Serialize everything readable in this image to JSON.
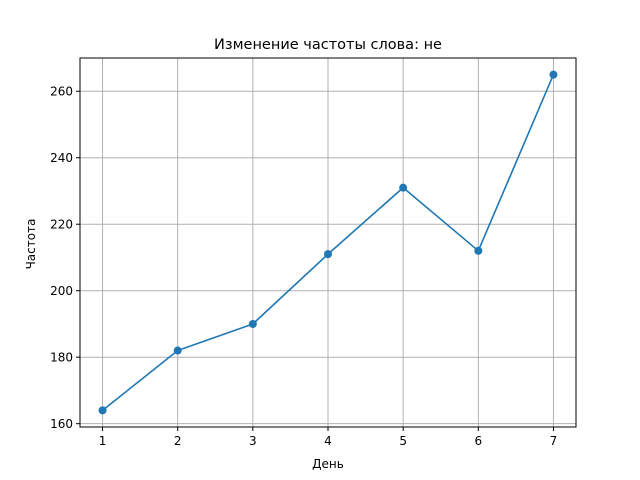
{
  "chart_data": {
    "type": "line",
    "title": "Изменение частоты слова: не",
    "xlabel": "День",
    "ylabel": "Частота",
    "x": [
      1,
      2,
      3,
      4,
      5,
      6,
      7
    ],
    "series": [
      {
        "values": [
          164,
          182,
          190,
          211,
          231,
          212,
          265
        ]
      }
    ],
    "xlim": [
      0.7,
      7.3
    ],
    "ylim": [
      159,
      270
    ],
    "xticks": [
      1,
      2,
      3,
      4,
      5,
      6,
      7
    ],
    "yticks": [
      160,
      180,
      200,
      220,
      240,
      260
    ],
    "grid": true,
    "markers": true,
    "line_color": "#1f77b4",
    "grid_color": "#b0b0b0"
  }
}
